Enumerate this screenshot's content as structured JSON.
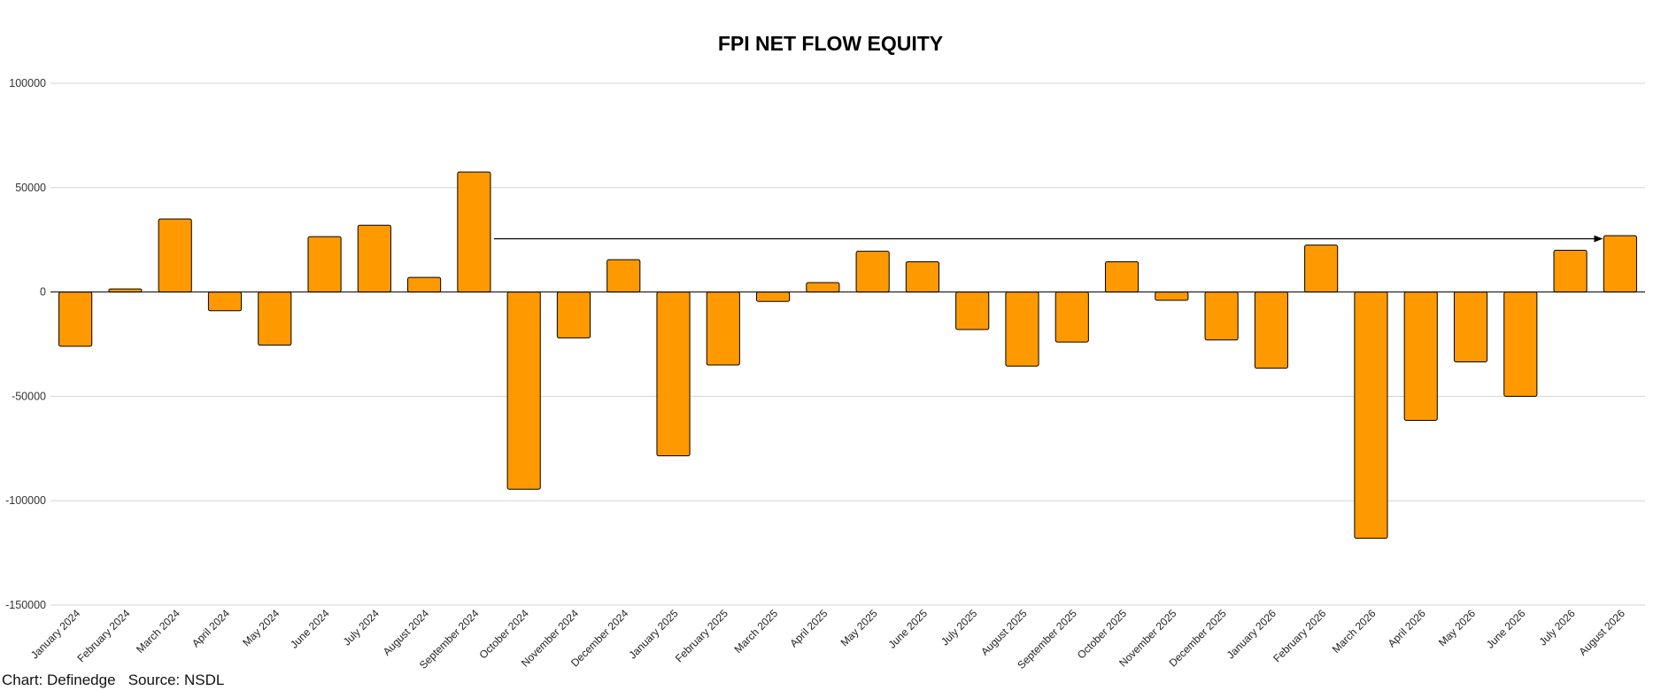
{
  "chart_data": {
    "type": "bar",
    "title": "FPI NET FLOW EQUITY",
    "xlabel": "",
    "ylabel": "",
    "ylim": [
      -150000,
      100000
    ],
    "yticks": [
      100000,
      50000,
      0,
      -50000,
      -100000,
      -150000
    ],
    "grid": true,
    "legend": "none",
    "bar_color": "#FF9900",
    "bar_edge_color": "#000000",
    "categories": [
      "January 2024",
      "February 2024",
      "March 2024",
      "April 2024",
      "May 2024",
      "June 2024",
      "July 2024",
      "August 2024",
      "September 2024",
      "October 2024",
      "November 2024",
      "December 2024",
      "January 2025",
      "February 2025",
      "March 2025",
      "April 2025",
      "May 2025",
      "June 2025",
      "July 2025",
      "August 2025",
      "September 2025",
      "October 2025",
      "November 2025",
      "December 2025",
      "January 2026",
      "February 2026",
      "March 2026",
      "April 2026",
      "May 2026",
      "June 2026",
      "July 2026",
      "August 2026"
    ],
    "values": [
      -26000,
      1500,
      35000,
      -9000,
      -25500,
      26500,
      32000,
      7000,
      57500,
      -94500,
      -22000,
      15500,
      -78500,
      -35000,
      -4500,
      4500,
      19500,
      14500,
      -18000,
      -35500,
      -24000,
      14500,
      -4000,
      -23000,
      -36500,
      22500,
      -118000,
      -61500,
      -33500,
      -50000,
      20000,
      27000
    ],
    "annotations": [
      {
        "type": "arrow",
        "from_category": "September 2024",
        "to_category": "August 2026",
        "y": 25500
      }
    ]
  },
  "footer": {
    "credit": "Chart: Definedge   Source: NSDL"
  }
}
